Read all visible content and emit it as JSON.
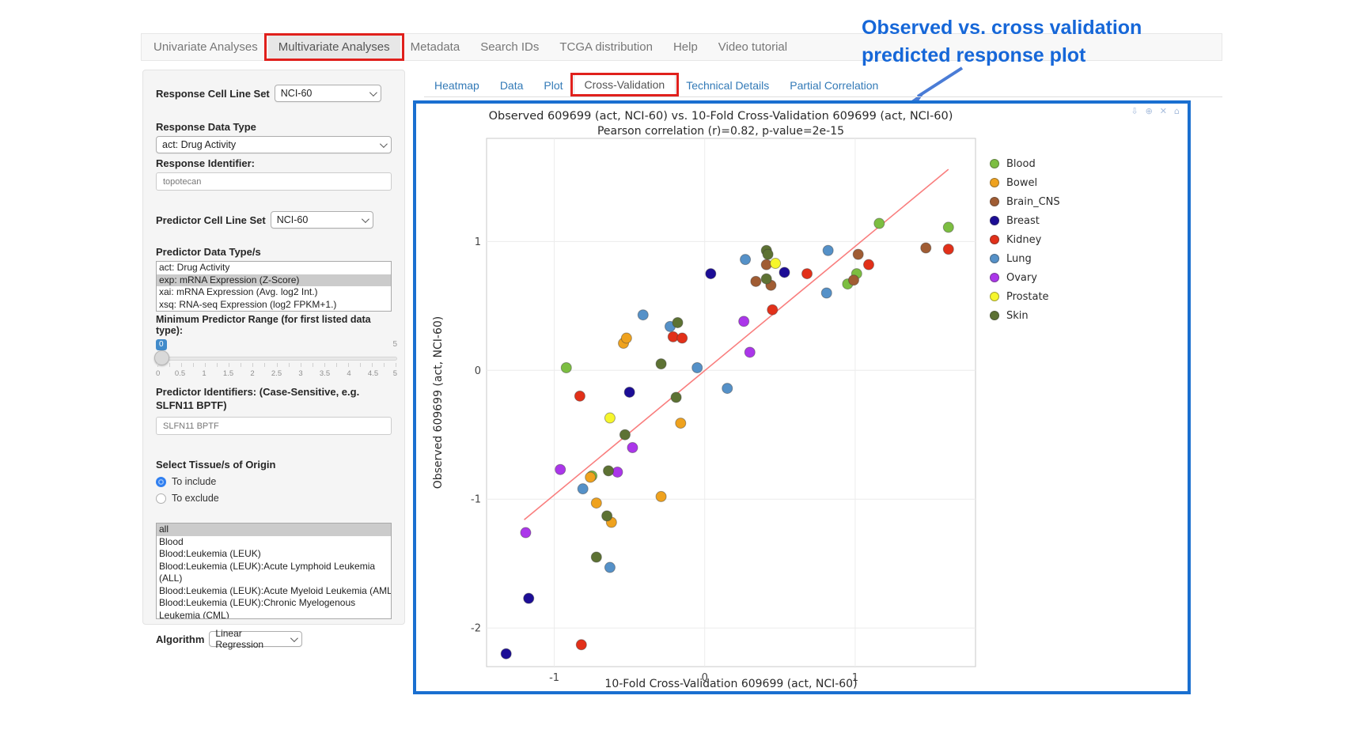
{
  "nav": {
    "items": [
      {
        "label": "Univariate Analyses",
        "active": false,
        "annotated": false
      },
      {
        "label": "Multivariate Analyses",
        "active": true,
        "annotated": true
      },
      {
        "label": "Metadata",
        "active": false,
        "annotated": false
      },
      {
        "label": "Search IDs",
        "active": false,
        "annotated": false
      },
      {
        "label": "TCGA distribution",
        "active": false,
        "annotated": false
      },
      {
        "label": "Help",
        "active": false,
        "annotated": false
      },
      {
        "label": "Video tutorial",
        "active": false,
        "annotated": false
      }
    ]
  },
  "annotation": {
    "line1": "Observed vs. cross validation",
    "line2": "predicted response plot",
    "color": "#1667d8"
  },
  "sidebar": {
    "response_cell_line_set": {
      "label": "Response Cell Line Set",
      "value": "NCI-60"
    },
    "response_data_type": {
      "label": "Response Data Type",
      "value": "act: Drug Activity"
    },
    "response_identifier": {
      "label": "Response Identifier:",
      "value": "topotecan"
    },
    "predictor_cell_line_set": {
      "label": "Predictor Cell Line Set",
      "value": "NCI-60"
    },
    "predictor_data_types": {
      "label": "Predictor Data Type/s",
      "options": [
        "act: Drug Activity",
        "exp: mRNA Expression (Z-Score)",
        "xai: mRNA Expression (Avg. log2 Int.)",
        "xsq: RNA-seq Expression (log2 FPKM+1.)"
      ],
      "selected": "exp: mRNA Expression (Z-Score)"
    },
    "min_predictor_range": {
      "label": "Minimum Predictor Range (for first listed data type):",
      "value": "0",
      "max_label": "5",
      "tick_labels": [
        "0",
        "0.5",
        "1",
        "1.5",
        "2",
        "2.5",
        "3",
        "3.5",
        "4",
        "4.5",
        "5"
      ]
    },
    "predictor_identifiers": {
      "label": "Predictor Identifiers: (Case-Sensitive, e.g. SLFN11 BPTF)",
      "value": "SLFN11 BPTF"
    },
    "tissue_origin": {
      "label": "Select Tissue/s of Origin",
      "options": [
        {
          "label": "To include",
          "selected": true
        },
        {
          "label": "To exclude",
          "selected": false
        }
      ]
    },
    "tissue_list": {
      "selected": "all",
      "options": [
        "all",
        "Blood",
        "Blood:Leukemia (LEUK)",
        "Blood:Leukemia (LEUK):Acute Lymphoid Leukemia (ALL)",
        "Blood:Leukemia (LEUK):Acute Myeloid Leukemia (AML)",
        "Blood:Leukemia (LEUK):Chronic Myelogenous Leukemia (CML)"
      ]
    },
    "algorithm": {
      "label": "Algorithm",
      "value": "Linear Regression"
    }
  },
  "subtabs": {
    "items": [
      {
        "label": "Heatmap",
        "active": false,
        "annotated": false
      },
      {
        "label": "Data",
        "active": false,
        "annotated": false
      },
      {
        "label": "Plot",
        "active": false,
        "annotated": false
      },
      {
        "label": "Cross-Validation",
        "active": true,
        "annotated": true
      },
      {
        "label": "Technical Details",
        "active": false,
        "annotated": false
      },
      {
        "label": "Partial Correlation",
        "active": false,
        "annotated": false
      }
    ]
  },
  "modebar_icons": [
    "download-plot-icon",
    "zoom-icon",
    "pan-icon",
    "reset-axes-icon"
  ],
  "modebar_glyphs": [
    "⇩",
    "⊕",
    "✕",
    "⌂"
  ],
  "chart_data": {
    "type": "scatter",
    "title": "Observed 609699 (act, NCI-60) vs. 10-Fold Cross-Validation 609699 (act, NCI-60)",
    "subtitle": "Pearson correlation (r)=0.82, p-value=2e-15",
    "xlabel": "10-Fold Cross-Validation 609699 (act, NCI-60)",
    "ylabel": "Observed 609699 (act, NCI-60)",
    "xlim": [
      -1.45,
      1.8
    ],
    "ylim": [
      -2.3,
      1.8
    ],
    "xticks": [
      -1,
      0,
      1
    ],
    "yticks": [
      -2,
      -1,
      0,
      1
    ],
    "grid": true,
    "legend_position": "right",
    "regression_line": {
      "x1": -1.2,
      "y1": -1.16,
      "x2": 1.62,
      "y2": 1.56,
      "color": "#f97e7e"
    },
    "series": [
      {
        "name": "Blood",
        "color": "#7cbe41",
        "points": [
          [
            -0.92,
            0.02
          ],
          [
            -0.75,
            -0.82
          ],
          [
            1.16,
            1.14
          ],
          [
            1.62,
            1.11
          ],
          [
            1.01,
            0.75
          ],
          [
            0.95,
            0.67
          ]
        ]
      },
      {
        "name": "Bowel",
        "color": "#efa21e",
        "points": [
          [
            -0.54,
            0.21
          ],
          [
            -0.52,
            0.25
          ],
          [
            -0.16,
            -0.41
          ],
          [
            -0.76,
            -0.83
          ],
          [
            -0.72,
            -1.03
          ],
          [
            -0.62,
            -1.18
          ],
          [
            -0.29,
            -0.98
          ]
        ]
      },
      {
        "name": "Brain_CNS",
        "color": "#a05c33",
        "points": [
          [
            1.47,
            0.95
          ],
          [
            0.41,
            0.82
          ],
          [
            0.34,
            0.69
          ],
          [
            0.44,
            0.66
          ],
          [
            1.02,
            0.9
          ],
          [
            0.99,
            0.7
          ]
        ]
      },
      {
        "name": "Breast",
        "color": "#1c0d96",
        "points": [
          [
            -0.5,
            -0.17
          ],
          [
            -1.17,
            -1.77
          ],
          [
            -1.32,
            -2.2
          ],
          [
            0.53,
            0.76
          ],
          [
            0.04,
            0.75
          ]
        ]
      },
      {
        "name": "Kidney",
        "color": "#e23019",
        "points": [
          [
            -0.21,
            0.26
          ],
          [
            -0.15,
            0.25
          ],
          [
            -0.83,
            -0.2
          ],
          [
            -0.82,
            -2.13
          ],
          [
            1.62,
            0.94
          ],
          [
            1.09,
            0.82
          ],
          [
            0.68,
            0.75
          ],
          [
            0.45,
            0.47
          ]
        ]
      },
      {
        "name": "Lung",
        "color": "#5591c8",
        "points": [
          [
            -0.41,
            0.43
          ],
          [
            -0.23,
            0.34
          ],
          [
            -0.81,
            -0.92
          ],
          [
            -0.63,
            -1.53
          ],
          [
            0.27,
            0.86
          ],
          [
            0.82,
            0.93
          ],
          [
            0.81,
            0.6
          ],
          [
            -0.05,
            0.02
          ],
          [
            0.15,
            -0.14
          ]
        ]
      },
      {
        "name": "Ovary",
        "color": "#ab36ea",
        "points": [
          [
            -0.48,
            -0.6
          ],
          [
            -0.96,
            -0.77
          ],
          [
            -0.58,
            -0.79
          ],
          [
            -1.19,
            -1.26
          ],
          [
            0.26,
            0.38
          ],
          [
            0.3,
            0.14
          ]
        ]
      },
      {
        "name": "Prostate",
        "color": "#f6f62c",
        "points": [
          [
            -0.63,
            -0.37
          ],
          [
            0.47,
            0.83
          ]
        ]
      },
      {
        "name": "Skin",
        "color": "#5d7233",
        "points": [
          [
            -0.18,
            0.37
          ],
          [
            -0.29,
            0.05
          ],
          [
            -0.19,
            -0.21
          ],
          [
            -0.53,
            -0.5
          ],
          [
            -0.64,
            -0.78
          ],
          [
            -0.65,
            -1.13
          ],
          [
            -0.72,
            -1.45
          ],
          [
            0.41,
            0.93
          ],
          [
            0.42,
            0.9
          ],
          [
            0.41,
            0.71
          ]
        ]
      }
    ]
  }
}
